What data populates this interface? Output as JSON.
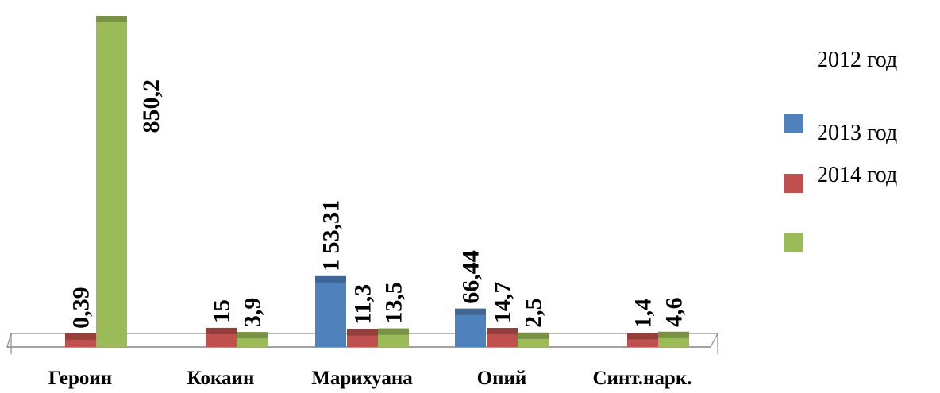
{
  "chart_data": {
    "type": "bar",
    "categories": [
      "Героин",
      "Кокаин",
      "Марихуана",
      "Опий",
      "Синт.нарк."
    ],
    "series": [
      {
        "legend_label": "2012 год",
        "color": "#4F81BD",
        "values": [
          null,
          null,
          153.31,
          66.44,
          null
        ],
        "value_labels": [
          "",
          "",
          "1 53,31",
          "66,44",
          ""
        ]
      },
      {
        "legend_label": "2013 год",
        "color": "#C0504D",
        "values": [
          0.39,
          15,
          11.3,
          14.7,
          1.4
        ],
        "value_labels": [
          "0,39",
          "15",
          "11,3",
          "14,7",
          "1,4"
        ]
      },
      {
        "legend_label": "2014 год",
        "color": "#9BBB59",
        "values": [
          850.2,
          3.9,
          13.5,
          2.5,
          4.6
        ],
        "value_labels": [
          "850,2",
          "3,9",
          "13,5",
          "2,5",
          "4,6"
        ]
      }
    ],
    "legend_swatch_colors": [
      "#4F81BD",
      "#C0504D",
      "#9BBB59"
    ],
    "legend_position": "right",
    "grid": false
  }
}
